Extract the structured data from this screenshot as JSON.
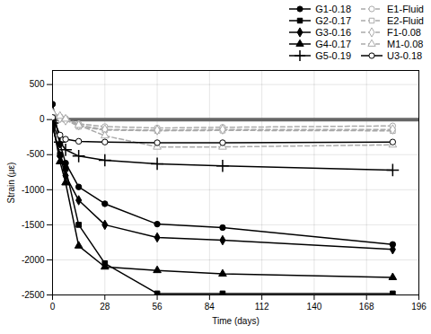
{
  "chart_data": {
    "type": "line",
    "xlabel": "Time (days)",
    "ylabel": "Strain (με)",
    "xlim": [
      0,
      196
    ],
    "ylim": [
      -2500,
      700
    ],
    "xticks": [
      0,
      28,
      56,
      84,
      112,
      140,
      168,
      196
    ],
    "yticks": [
      -2500,
      -2000,
      -1500,
      -1000,
      -500,
      0,
      500
    ],
    "grid": true,
    "legend": "upper right",
    "hline": {
      "y": 0,
      "color": "#666666"
    },
    "x": [
      0,
      4,
      7,
      14,
      28,
      56,
      91,
      182
    ],
    "series": [
      {
        "name": "G1-0.18",
        "color": "#000000",
        "marker": "circle",
        "line_style": "solid",
        "values": [
          220,
          -350,
          -620,
          -960,
          -1200,
          -1490,
          -1540,
          -1780
        ]
      },
      {
        "name": "G2-0.17",
        "color": "#000000",
        "marker": "square",
        "line_style": "solid",
        "values": [
          -100,
          -500,
          -700,
          -1500,
          -2050,
          -2480,
          -2480,
          -2480
        ]
      },
      {
        "name": "G3-0.16",
        "color": "#000000",
        "marker": "diamond",
        "line_style": "solid",
        "values": [
          -80,
          -520,
          -800,
          -1150,
          -1500,
          -1680,
          -1720,
          -1850
        ]
      },
      {
        "name": "G4-0.17",
        "color": "#000000",
        "marker": "triangle",
        "line_style": "solid",
        "values": [
          -50,
          -600,
          -900,
          -1800,
          -2100,
          -2150,
          -2200,
          -2250
        ]
      },
      {
        "name": "G5-0.19",
        "color": "#000000",
        "marker": "plus",
        "line_style": "solid",
        "values": [
          -50,
          -320,
          -430,
          -520,
          -580,
          -630,
          -660,
          -720
        ]
      },
      {
        "name": "E1-Fluid",
        "color": "#aaaaaa",
        "marker": "circle-open",
        "line_style": "dashed",
        "values": [
          80,
          40,
          15,
          -60,
          -100,
          -120,
          -110,
          -90
        ]
      },
      {
        "name": "E2-Fluid",
        "color": "#aaaaaa",
        "marker": "square-open",
        "line_style": "dashed",
        "values": [
          80,
          30,
          0,
          -100,
          -150,
          -160,
          -155,
          -160
        ]
      },
      {
        "name": "F1-0.08",
        "color": "#aaaaaa",
        "marker": "diamond-open",
        "line_style": "dashed",
        "values": [
          65,
          20,
          -10,
          -80,
          -140,
          -150,
          -140,
          -140
        ]
      },
      {
        "name": "M1-0.08",
        "color": "#aaaaaa",
        "marker": "triangle-open",
        "line_style": "dashed",
        "values": [
          100,
          50,
          10,
          -80,
          -230,
          -390,
          -390,
          -360
        ]
      },
      {
        "name": "U3-0.18",
        "color": "#000000",
        "marker": "circle-open",
        "line_style": "solid",
        "values": [
          30,
          -220,
          -280,
          -310,
          -320,
          -330,
          -330,
          -320
        ]
      }
    ]
  }
}
